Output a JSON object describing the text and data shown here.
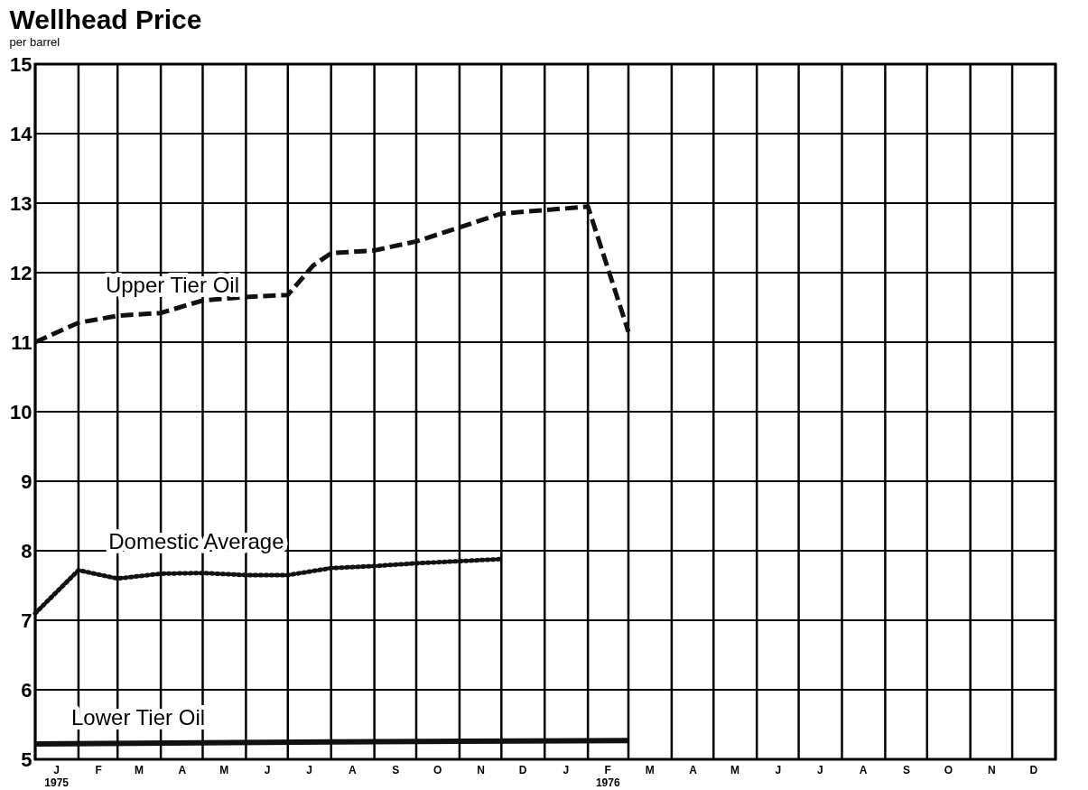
{
  "chart_data": {
    "type": "line",
    "title": "Wellhead Price",
    "subtitle": "per barrel",
    "xlim": [
      "1975-01",
      "1977-01"
    ],
    "xticks": [
      {
        "value": "1975-01",
        "label": null
      },
      {
        "value": "1975-02",
        "label": null
      },
      {
        "value": "1975-03",
        "label": null
      },
      {
        "value": "1975-04",
        "label": null
      },
      {
        "value": "1975-05",
        "label": null
      },
      {
        "value": "1975-06",
        "label": null
      },
      {
        "value": "1975-07",
        "label": null
      },
      {
        "value": "1975-08",
        "label": null
      },
      {
        "value": "1975-09",
        "label": null
      },
      {
        "value": "1975-10",
        "label": null
      },
      {
        "value": "1975-11",
        "label": null
      },
      {
        "value": "1975-12",
        "label": null
      },
      {
        "value": "1976-01",
        "label": null
      },
      {
        "value": "1976-02",
        "label": null
      },
      {
        "value": "1976-03",
        "label": null
      },
      {
        "value": "1976-04",
        "label": null
      },
      {
        "value": "1976-05",
        "label": null
      },
      {
        "value": "1976-06",
        "label": null
      },
      {
        "value": "1976-07",
        "label": null
      },
      {
        "value": "1976-08",
        "label": null
      },
      {
        "value": "1976-09",
        "label": null
      },
      {
        "value": "1976-10",
        "label": null
      },
      {
        "value": "1976-11",
        "label": null
      },
      {
        "value": "1976-12",
        "label": null
      },
      {
        "value": "1977-01",
        "label": null
      },
      {
        "value": "1975-01-16",
        "label": "J\n1975"
      },
      {
        "value": "1975-02-15",
        "label": "F"
      },
      {
        "value": "1975-03-16",
        "label": "M"
      },
      {
        "value": "1975-04-16",
        "label": "A"
      },
      {
        "value": "1975-05-16",
        "label": "M"
      },
      {
        "value": "1975-06-16",
        "label": "J"
      },
      {
        "value": "1975-07-16",
        "label": "J"
      },
      {
        "value": "1975-08-16",
        "label": "A"
      },
      {
        "value": "1975-09-16",
        "label": "S"
      },
      {
        "value": "1975-10-16",
        "label": "O"
      },
      {
        "value": "1975-11-16",
        "label": "N"
      },
      {
        "value": "1975-12-16",
        "label": "D"
      },
      {
        "value": "1976-01-16",
        "label": "J"
      },
      {
        "value": "1976-02-15",
        "label": "F\n1976"
      },
      {
        "value": "1976-03-16",
        "label": "M"
      },
      {
        "value": "1976-04-16",
        "label": "A"
      },
      {
        "value": "1976-05-16",
        "label": "M"
      },
      {
        "value": "1976-06-16",
        "label": "J"
      },
      {
        "value": "1976-07-16",
        "label": "J"
      },
      {
        "value": "1976-08-16",
        "label": "A"
      },
      {
        "value": "1976-09-16",
        "label": "S"
      },
      {
        "value": "1976-10-16",
        "label": "O"
      },
      {
        "value": "1976-11-16",
        "label": "N"
      },
      {
        "value": "1976-12-16",
        "label": "D"
      }
    ],
    "ylim": [
      5,
      15
    ],
    "yticks": [
      5,
      6,
      7,
      8,
      9,
      10,
      11,
      12,
      13,
      14,
      15
    ],
    "grid": true,
    "series": [
      {
        "name": "Upper Tier Oil",
        "color": "#111111",
        "line_style": "dashed",
        "x": [
          "1975-01",
          "1975-02",
          "1975-03",
          "1975-04",
          "1975-05",
          "1975-06",
          "1975-07",
          "1975-07-19",
          "1975-08",
          "1975-09",
          "1975-10",
          "1975-11",
          "1975-12",
          "1976-01",
          "1976-02",
          "1976-03"
        ],
        "values": [
          11.0,
          11.28,
          11.38,
          11.42,
          11.6,
          11.65,
          11.68,
          12.1,
          12.28,
          12.32,
          12.45,
          12.65,
          12.85,
          12.9,
          12.95,
          11.15
        ]
      },
      {
        "name": "Domestic Average",
        "color": "#111111",
        "line_style": "dotted",
        "x": [
          "1975-01",
          "1975-02",
          "1975-03",
          "1975-04",
          "1975-05",
          "1975-06",
          "1975-07",
          "1975-08",
          "1975-09",
          "1975-10",
          "1975-11",
          "1975-12"
        ],
        "values": [
          7.1,
          7.72,
          7.6,
          7.67,
          7.68,
          7.65,
          7.65,
          7.75,
          7.78,
          7.82,
          7.85,
          7.88
        ]
      },
      {
        "name": "Lower Tier Oil",
        "color": "#111111",
        "line_style": "solid",
        "x": [
          "1975-01",
          "1975-08",
          "1976-03"
        ],
        "values": [
          5.22,
          5.25,
          5.27
        ]
      }
    ]
  }
}
